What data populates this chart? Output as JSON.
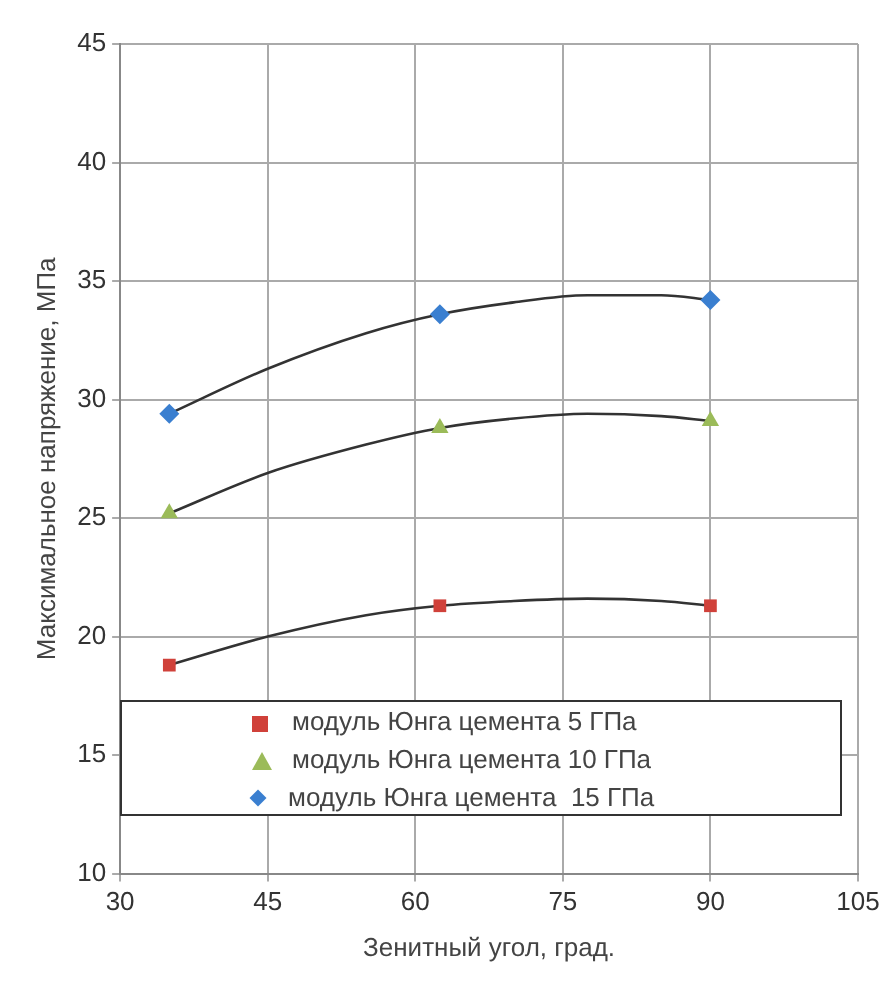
{
  "chart_data": {
    "type": "scatter",
    "xlabel": "Зенитный угол, град.",
    "ylabel": "Максимальное напряжение, МПа",
    "xlim": [
      30,
      105
    ],
    "xticks": [
      30,
      45,
      60,
      75,
      90,
      105
    ],
    "ylim": [
      10,
      45
    ],
    "yticks": [
      10,
      15,
      20,
      25,
      30,
      35,
      40,
      45
    ],
    "grid": true,
    "legend": "bottom",
    "series": [
      {
        "name": "модуль Юнга цемента 5 ГПа",
        "color": "#d0413a",
        "marker": "square",
        "x": [
          35,
          62.5,
          90
        ],
        "values": [
          18.8,
          21.3,
          21.3
        ]
      },
      {
        "name": "модуль Юнга цемента 10 ГПа",
        "color": "#9bbb59",
        "marker": "triangle",
        "x": [
          35,
          62.5,
          90
        ],
        "values": [
          25.2,
          28.8,
          29.1
        ]
      },
      {
        "name": "модуль Юнга цемента  15 ГПа",
        "color": "#3a7fd0",
        "marker": "diamond",
        "x": [
          35,
          62.5,
          90
        ],
        "values": [
          29.4,
          33.6,
          34.2
        ]
      },
      {
        "type": "line",
        "color": "#333333",
        "marker": "none",
        "x": [
          35,
          45,
          55,
          62.5,
          70,
          77.5,
          85,
          90
        ],
        "values": [
          18.8,
          20.0,
          20.9,
          21.3,
          21.5,
          21.6,
          21.5,
          21.3
        ]
      },
      {
        "type": "line",
        "color": "#333333",
        "marker": "none",
        "x": [
          35,
          45,
          55,
          62.5,
          70,
          77.5,
          85,
          90
        ],
        "values": [
          25.2,
          26.9,
          28.1,
          28.8,
          29.2,
          29.4,
          29.3,
          29.1
        ]
      },
      {
        "type": "line",
        "color": "#333333",
        "marker": "none",
        "x": [
          35,
          45,
          55,
          62.5,
          70,
          77.5,
          85,
          90
        ],
        "values": [
          29.4,
          31.3,
          32.8,
          33.6,
          34.1,
          34.4,
          34.4,
          34.2
        ]
      }
    ]
  }
}
